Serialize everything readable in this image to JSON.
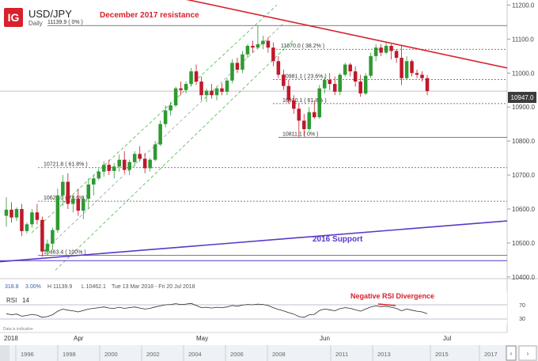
{
  "header": {
    "logo_text": "IG",
    "symbol": "USD/JPY",
    "timeframe": "Daily"
  },
  "annotations": {
    "resistance_label": "December 2017 resistance",
    "support_label": "2016 Support",
    "rsi_divergence_label": "Negative RSI Divergence",
    "fib_labels": [
      {
        "text": "11139.9 ( 0% )",
        "price": 11139.9
      },
      {
        "text": "11070.0 ( 38.2% )",
        "price": 11070.0
      },
      {
        "text": "10981.1 ( 23.6% )",
        "price": 10981.1
      },
      {
        "text": "10910.1 ( 61.8% )",
        "price": 10910.1
      },
      {
        "text": "10811.1 ( 0% )",
        "price": 10811.1
      },
      {
        "text": "10721.8 ( 61.8% )",
        "price": 10721.8
      },
      {
        "text": "10623.0 ( 78.6% )",
        "price": 10623.0
      },
      {
        "text": "10463.4 ( 100% )",
        "price": 10463.4
      }
    ]
  },
  "footer": {
    "scale_value": "318.8",
    "scale_pct": "3.00%",
    "range_high": "H 11139.9",
    "range_low": "L 10462.1",
    "date_range": "Tue 13 Mar 2018 - Fri 20 Jul 2018",
    "disclaimer": "Data is indicative",
    "year_label": "2018",
    "month_labels": [
      "Apr",
      "May",
      "Jun",
      "Jul"
    ],
    "navigator_years": [
      "1996",
      "1998",
      "2000",
      "2002",
      "2004",
      "2006",
      "2008",
      "2011",
      "2013",
      "2015",
      "2017"
    ]
  },
  "rsi": {
    "label": "RSI",
    "period": "14",
    "levels": [
      "70",
      "30"
    ]
  },
  "colors": {
    "bull": "#2e9a32",
    "bear": "#c0192b",
    "resistance": "#d7212d",
    "support": "#5b38c8",
    "rsi_line": "#2a2a2a",
    "fib_channel": "#49b849"
  },
  "chart_data": {
    "type": "candlestick",
    "symbol": "USD/JPY",
    "timeframe": "Daily",
    "price_axis": {
      "ticks": [
        10400.0,
        10500.0,
        10600.0,
        10700.0,
        10800.0,
        10900.0,
        11000.0,
        11100.0,
        11200.0
      ],
      "tick_labels": [
        "10400.0",
        "10500.0",
        "10600.0",
        "10700.0",
        "10800.0",
        "10900.0",
        "11000.0",
        "11100.0",
        "11200.0"
      ],
      "range": [
        10395,
        11215
      ]
    },
    "current_price": 10947.0,
    "current_price_label": "10947.0",
    "time_axis": [
      "Apr",
      "May",
      "Jun",
      "Jul"
    ],
    "ohlc": [
      [
        10580,
        10635,
        10548,
        10598
      ],
      [
        10598,
        10620,
        10560,
        10575
      ],
      [
        10575,
        10605,
        10565,
        10600
      ],
      [
        10600,
        10615,
        10520,
        10535
      ],
      [
        10535,
        10560,
        10528,
        10555
      ],
      [
        10555,
        10600,
        10545,
        10590
      ],
      [
        10590,
        10615,
        10555,
        10568
      ],
      [
        10568,
        10578,
        10460,
        10475
      ],
      [
        10475,
        10510,
        10462,
        10498
      ],
      [
        10498,
        10545,
        10480,
        10538
      ],
      [
        10538,
        10660,
        10530,
        10640
      ],
      [
        10640,
        10700,
        10610,
        10680
      ],
      [
        10680,
        10705,
        10600,
        10615
      ],
      [
        10615,
        10640,
        10590,
        10630
      ],
      [
        10630,
        10660,
        10580,
        10595
      ],
      [
        10595,
        10640,
        10570,
        10630
      ],
      [
        10630,
        10690,
        10600,
        10672
      ],
      [
        10672,
        10700,
        10640,
        10690
      ],
      [
        10690,
        10720,
        10685,
        10710
      ],
      [
        10710,
        10740,
        10695,
        10730
      ],
      [
        10730,
        10745,
        10700,
        10712
      ],
      [
        10712,
        10735,
        10690,
        10725
      ],
      [
        10725,
        10760,
        10710,
        10745
      ],
      [
        10745,
        10770,
        10705,
        10715
      ],
      [
        10715,
        10745,
        10700,
        10738
      ],
      [
        10738,
        10770,
        10725,
        10762
      ],
      [
        10762,
        10785,
        10740,
        10748
      ],
      [
        10748,
        10765,
        10705,
        10720
      ],
      [
        10720,
        10750,
        10710,
        10745
      ],
      [
        10745,
        10800,
        10740,
        10790
      ],
      [
        10790,
        10860,
        10785,
        10850
      ],
      [
        10850,
        10905,
        10840,
        10890
      ],
      [
        10890,
        10915,
        10875,
        10905
      ],
      [
        10905,
        10960,
        10900,
        10955
      ],
      [
        10955,
        10975,
        10935,
        10950
      ],
      [
        10950,
        10975,
        10940,
        10968
      ],
      [
        10968,
        11015,
        10960,
        11005
      ],
      [
        11005,
        11025,
        10965,
        10975
      ],
      [
        10975,
        10990,
        10920,
        10935
      ],
      [
        10935,
        10955,
        10915,
        10948
      ],
      [
        10948,
        10968,
        10925,
        10935
      ],
      [
        10935,
        10960,
        10920,
        10955
      ],
      [
        10955,
        10970,
        10935,
        10945
      ],
      [
        10945,
        10985,
        10935,
        10978
      ],
      [
        10978,
        11040,
        10970,
        11030
      ],
      [
        11030,
        11045,
        11000,
        11010
      ],
      [
        11010,
        11065,
        11000,
        11055
      ],
      [
        11055,
        11085,
        11045,
        11080
      ],
      [
        11080,
        11095,
        11060,
        11075
      ],
      [
        11075,
        11140,
        11070,
        11085
      ],
      [
        11085,
        11110,
        11070,
        11095
      ],
      [
        11095,
        11105,
        11060,
        11075
      ],
      [
        11075,
        11090,
        11020,
        11035
      ],
      [
        11035,
        11050,
        10985,
        10995
      ],
      [
        10995,
        11010,
        10950,
        10962
      ],
      [
        10962,
        10980,
        10910,
        10920
      ],
      [
        10920,
        10935,
        10880,
        10895
      ],
      [
        10895,
        10910,
        10811,
        10860
      ],
      [
        10860,
        10880,
        10815,
        10835
      ],
      [
        10835,
        10900,
        10830,
        10885
      ],
      [
        10885,
        10920,
        10865,
        10870
      ],
      [
        10870,
        10965,
        10865,
        10955
      ],
      [
        10955,
        10990,
        10940,
        10980
      ],
      [
        10980,
        11000,
        10950,
        10968
      ],
      [
        10968,
        10990,
        10935,
        10945
      ],
      [
        10945,
        11000,
        10935,
        10995
      ],
      [
        10995,
        11030,
        10990,
        11025
      ],
      [
        11025,
        11030,
        10990,
        11005
      ],
      [
        11005,
        11020,
        10960,
        10975
      ],
      [
        10975,
        10995,
        10930,
        10940
      ],
      [
        10940,
        11000,
        10935,
        10992
      ],
      [
        10992,
        11060,
        10985,
        11050
      ],
      [
        11050,
        11085,
        11035,
        11075
      ],
      [
        11075,
        11085,
        11050,
        11060
      ],
      [
        11060,
        11090,
        11055,
        11080
      ],
      [
        11080,
        11085,
        11040,
        11065
      ],
      [
        11065,
        11070,
        11030,
        11045
      ],
      [
        11045,
        11080,
        10965,
        10985
      ],
      [
        10985,
        11050,
        10980,
        11035
      ],
      [
        11035,
        11040,
        10990,
        11000
      ],
      [
        11000,
        11010,
        10985,
        10995
      ],
      [
        10995,
        11005,
        10975,
        10985
      ],
      [
        10985,
        10995,
        10935,
        10947
      ]
    ],
    "series": [
      {
        "name": "December 2017 resistance",
        "type": "trendline",
        "x": [
          0.2,
          1.0
        ],
        "y": [
          11270,
          11015
        ]
      },
      {
        "name": "2016 Support",
        "type": "trendline",
        "x": [
          0.0,
          1.0
        ],
        "y": [
          10445,
          10565
        ]
      }
    ],
    "horizontal_levels": [
      11139.9,
      11070.0,
      10981.1,
      10910.1,
      10811.1,
      10721.8,
      10623.0,
      10463.4,
      10947.0
    ],
    "rsi": {
      "period": 14,
      "levels": [
        70,
        30
      ],
      "values": [
        45,
        42,
        44,
        38,
        40,
        43,
        41,
        35,
        37,
        42,
        52,
        58,
        55,
        53,
        50,
        54,
        58,
        60,
        62,
        64,
        61,
        60,
        63,
        60,
        62,
        64,
        61,
        58,
        60,
        64,
        67,
        70,
        71,
        73,
        71,
        72,
        74,
        68,
        62,
        63,
        61,
        63,
        62,
        64,
        68,
        66,
        69,
        71,
        70,
        72,
        71,
        68,
        62,
        57,
        53,
        48,
        44,
        37,
        35,
        42,
        43,
        54,
        58,
        56,
        53,
        59,
        62,
        60,
        56,
        52,
        58,
        64,
        67,
        65,
        66,
        63,
        60,
        53,
        58,
        55,
        52,
        50,
        45
      ]
    }
  }
}
